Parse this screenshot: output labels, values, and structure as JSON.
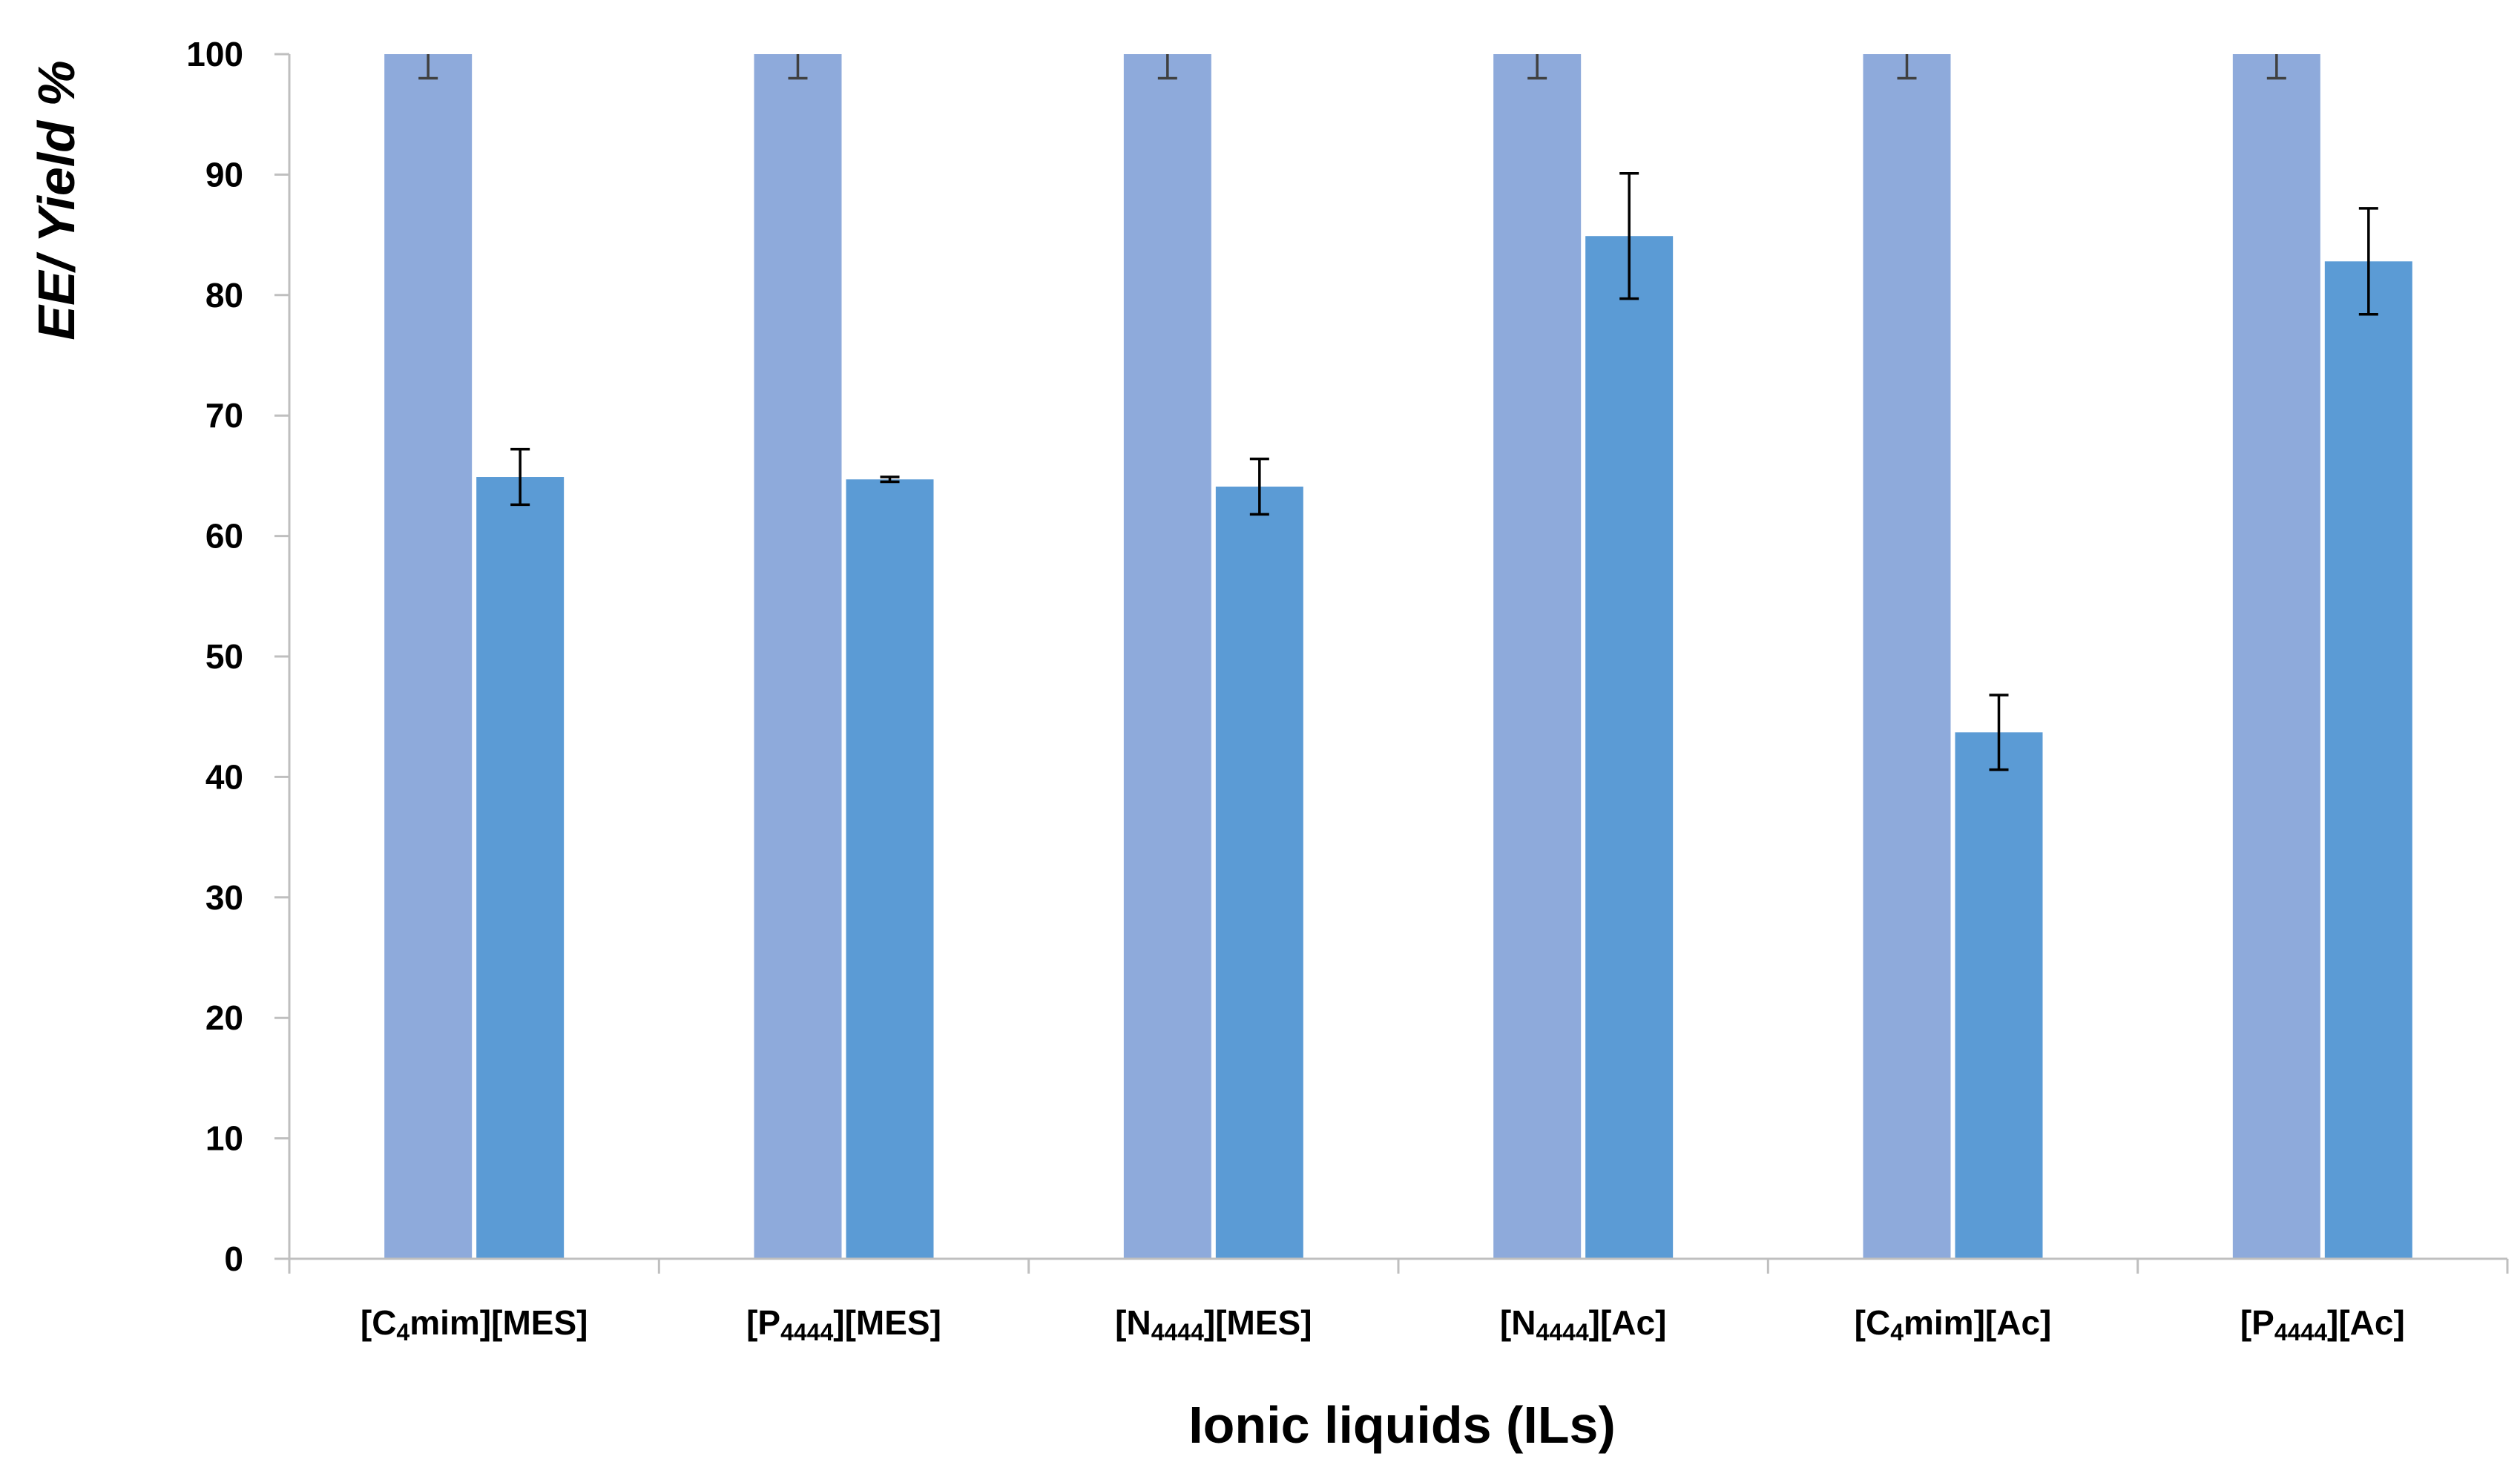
{
  "chart_data": {
    "type": "bar",
    "xlabel": "Ionic liquids (ILs)",
    "ylabel": "EE/ Yield %",
    "ylim": [
      0,
      100
    ],
    "yticks": [
      0,
      10,
      20,
      30,
      40,
      50,
      60,
      70,
      80,
      90,
      100
    ],
    "grid": false,
    "legend": "none",
    "categories": [
      {
        "base": "[C",
        "sub": "4",
        "rest": "mim][MES]"
      },
      {
        "base": "[P",
        "sub": "4444",
        "rest": "][MES]"
      },
      {
        "base": "[N",
        "sub": "4444",
        "rest": "][MES]"
      },
      {
        "base": "[N",
        "sub": "4444",
        "rest": "][Ac]"
      },
      {
        "base": "[C",
        "sub": "4",
        "rest": "mim][Ac]"
      },
      {
        "base": "[P",
        "sub": "4444",
        "rest": "][Ac]"
      }
    ],
    "series": [
      {
        "color": "#8eaadb",
        "errcolor": "#404040",
        "values": [
          100,
          100,
          100,
          100,
          100,
          100
        ],
        "errors": [
          2,
          2,
          2,
          2,
          2,
          2
        ]
      },
      {
        "color": "#5b9bd5",
        "errcolor": "#000000",
        "values": [
          64.9,
          64.7,
          64.1,
          84.9,
          43.7,
          82.8
        ],
        "errors": [
          2.3,
          0.2,
          2.3,
          5.2,
          3.1,
          4.4
        ]
      }
    ]
  }
}
